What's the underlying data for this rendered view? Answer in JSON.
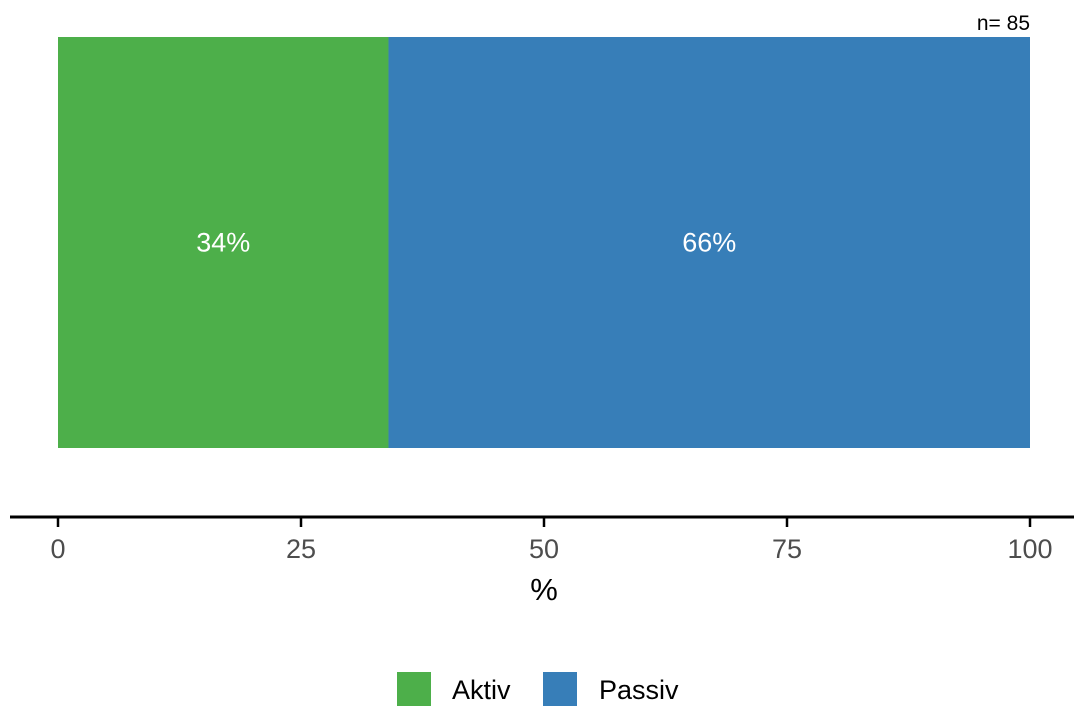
{
  "chart_data": {
    "type": "bar",
    "orientation": "horizontal",
    "stacked": true,
    "categories": [
      ""
    ],
    "series": [
      {
        "name": "Aktiv",
        "values": [
          34
        ],
        "label": "34%",
        "color": "#4DAF4A"
      },
      {
        "name": "Passiv",
        "values": [
          66
        ],
        "label": "66%",
        "color": "#377EB8"
      }
    ],
    "annotation": "n= 85",
    "xlabel": "%",
    "ylabel": "",
    "xlim": [
      0,
      100
    ],
    "xticks": [
      0,
      25,
      50,
      75,
      100
    ],
    "grid": false,
    "legend": "bottom"
  }
}
